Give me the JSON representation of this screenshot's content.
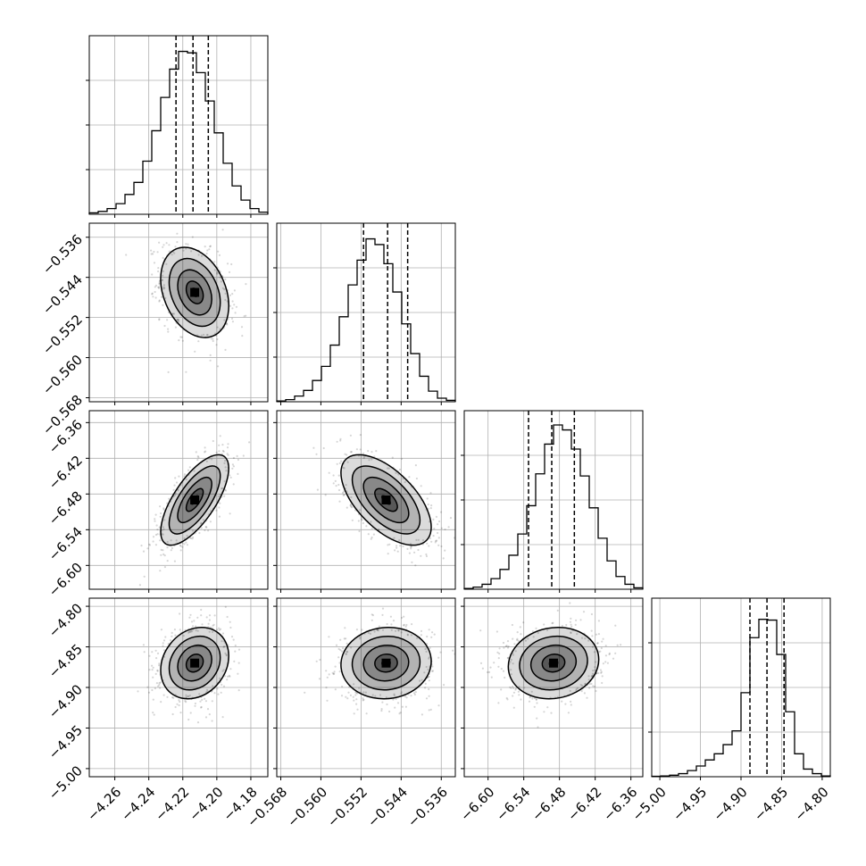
{
  "chart_data": {
    "type": "corner",
    "grid": true,
    "parameters": [
      {
        "range": [
          -4.275,
          -4.17
        ],
        "ticks": [
          -4.26,
          -4.24,
          -4.22,
          -4.2,
          -4.18
        ],
        "tick_labels": [
          "−4.26",
          "−4.24",
          "−4.22",
          "−4.20",
          "−4.18"
        ],
        "quantiles": [
          -4.224,
          -4.214,
          -4.205
        ],
        "mean": -4.213,
        "sd": 0.01
      },
      {
        "range": [
          -0.5688,
          -0.5332
        ],
        "ticks": [
          -0.568,
          -0.56,
          -0.552,
          -0.544,
          -0.536
        ],
        "tick_labels": [
          "−0.568",
          "−0.560",
          "−0.552",
          "−0.544",
          "−0.536"
        ],
        "quantiles": [
          -0.5515,
          -0.5467,
          -0.5427
        ],
        "mean": -0.547,
        "sd": 0.0045
      },
      {
        "range": [
          -6.64,
          -6.34
        ],
        "ticks": [
          -6.6,
          -6.54,
          -6.48,
          -6.42,
          -6.36
        ],
        "tick_labels": [
          "−6.60",
          "−6.54",
          "−6.48",
          "−6.42",
          "−6.36"
        ],
        "quantiles": [
          -6.532,
          -6.493,
          -6.455
        ],
        "mean": -6.49,
        "sd": 0.038
      },
      {
        "range": [
          -5.01,
          -4.79
        ],
        "ticks": [
          -5.0,
          -4.95,
          -4.9,
          -4.85,
          -4.8
        ],
        "tick_labels": [
          "−5.00",
          "−4.95",
          "−4.90",
          "−4.85",
          "−4.80"
        ],
        "quantiles": [
          -4.889,
          -4.868,
          -4.847
        ],
        "mean": -4.87,
        "sd": 0.022
      }
    ],
    "histograms": [
      [
        2,
        4,
        8,
        15,
        28,
        45,
        75,
        118,
        165,
        205,
        230,
        228,
        200,
        160,
        115,
        72,
        40,
        20,
        8,
        3
      ],
      [
        1,
        3,
        8,
        16,
        30,
        50,
        80,
        120,
        165,
        200,
        230,
        222,
        195,
        155,
        110,
        68,
        36,
        15,
        5,
        2
      ],
      [
        1,
        3,
        7,
        15,
        28,
        48,
        78,
        118,
        163,
        205,
        232,
        225,
        198,
        160,
        115,
        72,
        40,
        18,
        7,
        2
      ],
      [
        0.5,
        1,
        2,
        4,
        8,
        14,
        22,
        30,
        42,
        60,
        110,
        182,
        206,
        205,
        160,
        85,
        30,
        10,
        4,
        1
      ]
    ],
    "hist_max": [
      232,
      232,
      232,
      215
    ],
    "correlations": [
      {
        "row": 1,
        "col": 0,
        "rho": -0.3
      },
      {
        "row": 2,
        "col": 0,
        "rho": 0.7
      },
      {
        "row": 2,
        "col": 1,
        "rho": -0.6
      },
      {
        "row": 3,
        "col": 0,
        "rho": 0.2
      },
      {
        "row": 3,
        "col": 1,
        "rho": 0.05
      },
      {
        "row": 3,
        "col": 2,
        "rho": 0.1
      }
    ],
    "contour_levels_sigma": [
      0.5,
      1.0,
      1.5,
      2.0
    ],
    "colors": {
      "line": "#000000",
      "grid": "#b0b0b0",
      "scatter": "#000000",
      "density_dark": "#000000"
    }
  }
}
